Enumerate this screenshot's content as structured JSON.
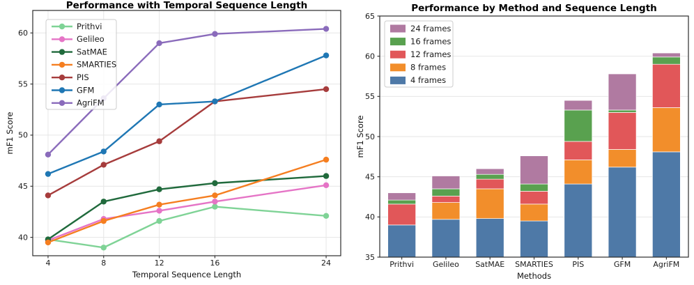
{
  "chart_data": [
    {
      "type": "line",
      "title": "Performance with Temporal Sequence Length",
      "xlabel": "Temporal Sequence Length",
      "ylabel": "mF1 Score",
      "x": [
        4,
        8,
        12,
        16,
        24
      ],
      "xticks": [
        4,
        8,
        12,
        16,
        24
      ],
      "yticks": [
        40,
        45,
        50,
        55,
        60
      ],
      "xlim": [
        2.9,
        25.05
      ],
      "ylim": [
        38.2,
        62.2
      ],
      "grid": "both",
      "legend_position": "upper left",
      "series": [
        {
          "name": "Prithvi",
          "color": "#7FD396",
          "values": [
            39.8,
            39.0,
            41.6,
            43.0,
            42.1
          ]
        },
        {
          "name": "Gelileo",
          "color": "#E574C6",
          "values": [
            39.7,
            41.8,
            42.6,
            43.5,
            45.1
          ]
        },
        {
          "name": "SatMAE",
          "color": "#206A3C",
          "values": [
            39.8,
            43.5,
            44.7,
            45.3,
            46.0
          ]
        },
        {
          "name": "SMARTIES",
          "color": "#F57E20",
          "values": [
            39.5,
            41.6,
            43.2,
            44.1,
            47.6
          ]
        },
        {
          "name": "PIS",
          "color": "#A63C3C",
          "values": [
            44.1,
            47.1,
            49.4,
            53.3,
            54.5
          ]
        },
        {
          "name": "GFM",
          "color": "#1F77B4",
          "values": [
            46.2,
            48.4,
            53.0,
            53.3,
            57.8
          ]
        },
        {
          "name": "AgriFM",
          "color": "#8A6BBB",
          "values": [
            48.1,
            53.6,
            59.0,
            59.9,
            60.4
          ]
        }
      ]
    },
    {
      "type": "bar",
      "title": "Performance by Method and Sequence Length",
      "xlabel": "Methods",
      "ylabel": "mF1 Score",
      "categories": [
        "Prithvi",
        "Gelileo",
        "SatMAE",
        "SMARTIES",
        "PIS",
        "GFM",
        "AgriFM"
      ],
      "yticks": [
        35,
        40,
        45,
        50,
        55,
        60,
        65
      ],
      "ylim": [
        35,
        65
      ],
      "grid": "horizontal",
      "legend_position": "upper left",
      "legend": [
        {
          "label": "24 frames",
          "color": "#B07AA1"
        },
        {
          "label": "16 frames",
          "color": "#59A14F"
        },
        {
          "label": "12 frames",
          "color": "#E15759"
        },
        {
          "label": "8 frames",
          "color": "#F28E2B"
        },
        {
          "label": "4 frames",
          "color": "#4E79A7"
        }
      ],
      "stack": {
        "frames": [
          "4 frames",
          "8 frames",
          "12 frames",
          "16 frames",
          "24 frames"
        ],
        "colors": [
          "#4E79A7",
          "#F28E2B",
          "#E15759",
          "#59A14F",
          "#B07AA1"
        ],
        "note": "each segment top equals the mF1 score at that sequence length"
      },
      "series": [
        {
          "name": "Prithvi",
          "values": [
            39.8,
            39.0,
            41.6,
            43.0,
            42.1
          ]
        },
        {
          "name": "Gelileo",
          "values": [
            39.7,
            41.8,
            42.6,
            43.5,
            45.1
          ]
        },
        {
          "name": "SatMAE",
          "values": [
            39.8,
            43.5,
            44.7,
            45.3,
            46.0
          ]
        },
        {
          "name": "SMARTIES",
          "values": [
            39.5,
            41.6,
            43.2,
            44.1,
            47.6
          ]
        },
        {
          "name": "PIS",
          "values": [
            44.1,
            47.1,
            49.4,
            53.3,
            54.5
          ]
        },
        {
          "name": "GFM",
          "values": [
            46.2,
            48.4,
            53.0,
            53.3,
            57.8
          ]
        },
        {
          "name": "AgriFM",
          "values": [
            48.1,
            53.6,
            59.0,
            59.9,
            60.4
          ]
        }
      ]
    }
  ],
  "style": {
    "grid_color": "#e6e6e6",
    "spine_color": "#2b2b2b",
    "tick_text_color": "#1a1a1a",
    "legend_border": "#cccccc",
    "legend_fill": "rgba(255,255,255,0.85)"
  }
}
